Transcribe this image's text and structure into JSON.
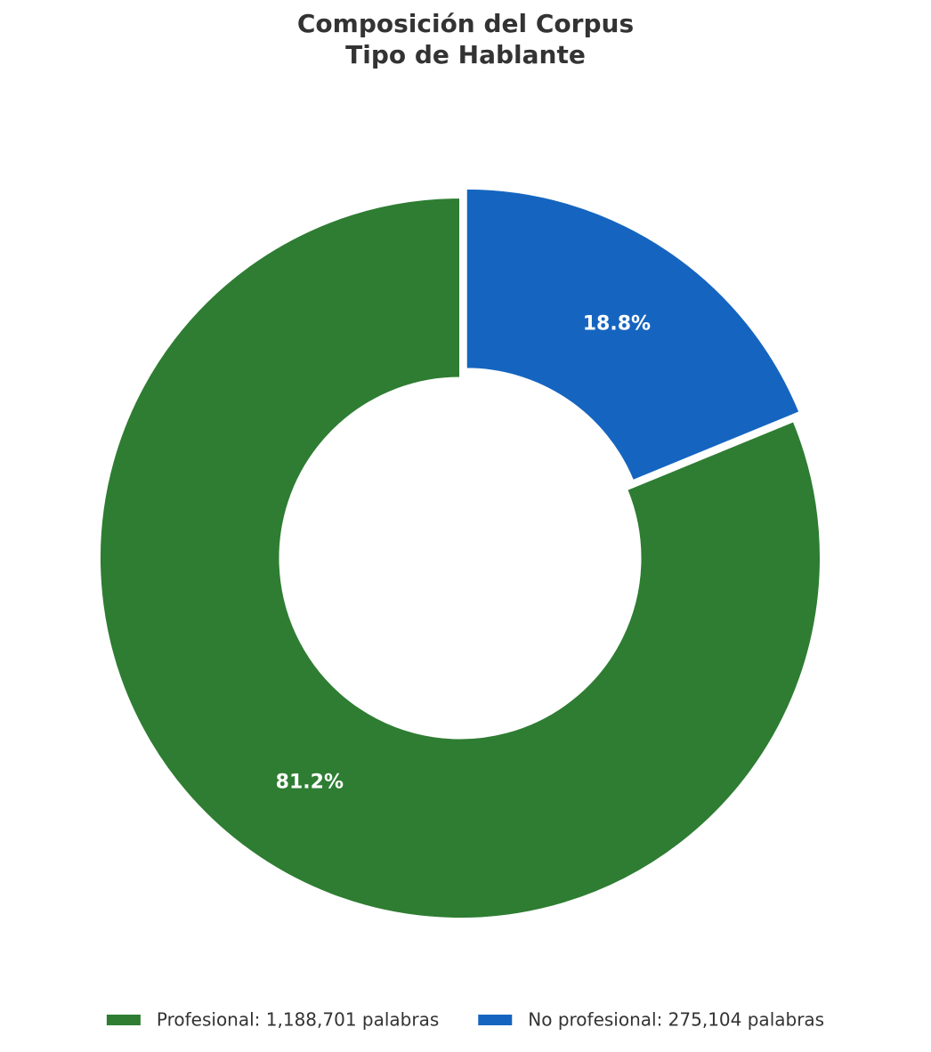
{
  "chart_data": {
    "type": "pie",
    "title": "Composición del Corpus",
    "subtitle": "Tipo de Hablante",
    "categories": [
      "Profesional: 1,188,701 palabras",
      "No profesional: 275,104 palabras"
    ],
    "values": [
      81.2,
      18.8
    ],
    "value_labels": [
      "81.2%",
      "18.8%"
    ],
    "colors": [
      "#2e7d32",
      "#1565c0"
    ],
    "hole": 0.5,
    "pull": [
      0,
      0.03
    ],
    "direction": "counterclockwise",
    "legend": "bottom"
  }
}
